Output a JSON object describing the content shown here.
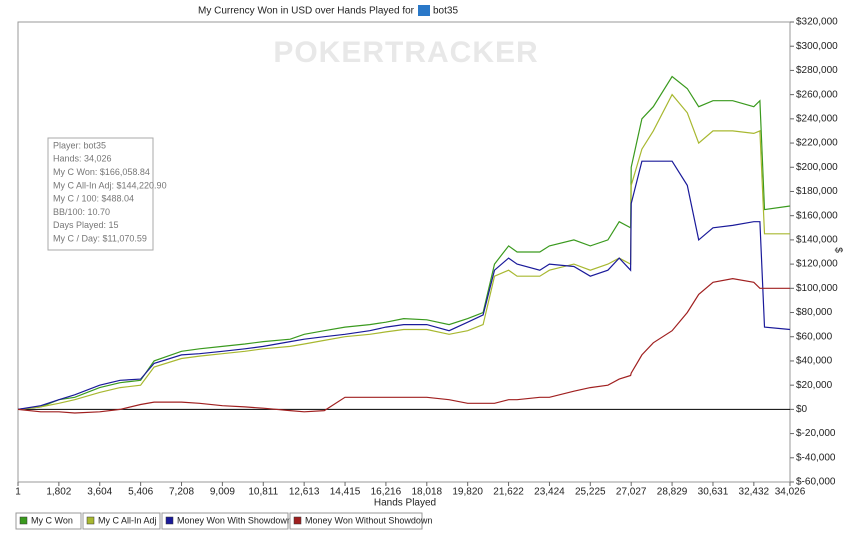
{
  "chart_data": {
    "type": "line",
    "title": "My Currency Won in USD over Hands Played for",
    "title_player": "bot35",
    "watermark": "POKERTRACKER",
    "x_label": "Hands Played",
    "y_label": "$",
    "info_box": [
      "Player: bot35",
      "Hands: 34,026",
      "My C Won: $166,058.84",
      "My C All-In Adj: $144,220.90",
      "My C / 100: $488.04",
      "BB/100: 10.70",
      "Days Played: 15",
      "My C / Day: $11,070.59"
    ],
    "grid": false,
    "xlim": [
      1,
      34026
    ],
    "ylim": [
      -60000,
      320000
    ],
    "xticks": [
      1,
      {
        "value": 1802,
        "label": "1,802"
      },
      {
        "value": 3604,
        "label": "3,604"
      },
      {
        "value": 5406,
        "label": "5,406"
      },
      {
        "value": 7208,
        "label": "7,208"
      },
      {
        "value": 9009,
        "label": "9,009"
      },
      {
        "value": 10811,
        "label": "10,811"
      },
      {
        "value": 12613,
        "label": "12,613"
      },
      {
        "value": 14415,
        "label": "14,415"
      },
      {
        "value": 16216,
        "label": "16,216"
      },
      {
        "value": 18018,
        "label": "18,018"
      },
      {
        "value": 19820,
        "label": "19,820"
      },
      {
        "value": 21622,
        "label": "21,622"
      },
      {
        "value": 23424,
        "label": "23,424"
      },
      {
        "value": 25225,
        "label": "25,225"
      },
      {
        "value": 27027,
        "label": "27,027"
      },
      {
        "value": 28829,
        "label": "28,829"
      },
      {
        "value": 30631,
        "label": "30,631"
      },
      {
        "value": 32432,
        "label": "32,432"
      },
      {
        "value": 34026,
        "label": "34,026"
      }
    ],
    "yticks": [
      {
        "value": -60000,
        "label": "$-60,000"
      },
      {
        "value": -40000,
        "label": "$-40,000"
      },
      {
        "value": -20000,
        "label": "$-20,000"
      },
      {
        "value": 0,
        "label": "$0"
      },
      {
        "value": 20000,
        "label": "$20,000"
      },
      {
        "value": 40000,
        "label": "$40,000"
      },
      {
        "value": 60000,
        "label": "$60,000"
      },
      {
        "value": 80000,
        "label": "$80,000"
      },
      {
        "value": 100000,
        "label": "$100,000"
      },
      {
        "value": 120000,
        "label": "$120,000"
      },
      {
        "value": 140000,
        "label": "$140,000"
      },
      {
        "value": 160000,
        "label": "$160,000"
      },
      {
        "value": 180000,
        "label": "$180,000"
      },
      {
        "value": 200000,
        "label": "$200,000"
      },
      {
        "value": 220000,
        "label": "$220,000"
      },
      {
        "value": 240000,
        "label": "$240,000"
      },
      {
        "value": 260000,
        "label": "$260,000"
      },
      {
        "value": 280000,
        "label": "$280,000"
      },
      {
        "value": 300000,
        "label": "$300,000"
      },
      {
        "value": 320000,
        "label": "$320,000"
      }
    ],
    "x": [
      1,
      1000,
      1802,
      2500,
      3604,
      4500,
      5406,
      6000,
      7208,
      8000,
      9009,
      10000,
      10811,
      12000,
      12613,
      13500,
      14415,
      15500,
      16216,
      17000,
      18018,
      19000,
      19820,
      20500,
      21000,
      21622,
      22000,
      23000,
      23424,
      24500,
      25225,
      26000,
      26500,
      27000,
      27027,
      27500,
      28000,
      28829,
      29500,
      30000,
      30631,
      31500,
      32432,
      32700,
      32900,
      34026
    ],
    "series": [
      {
        "name": "My C Won",
        "color": "#3a9a1e",
        "values": [
          0,
          2000,
          8000,
          10000,
          18000,
          22000,
          24000,
          40000,
          48000,
          50000,
          52000,
          54000,
          56000,
          58000,
          62000,
          65000,
          68000,
          70000,
          72000,
          75000,
          74000,
          70000,
          75000,
          80000,
          120000,
          135000,
          130000,
          130000,
          135000,
          140000,
          135000,
          140000,
          155000,
          150000,
          200000,
          240000,
          250000,
          275000,
          265000,
          250000,
          255000,
          255000,
          250000,
          255000,
          165000,
          168000
        ]
      },
      {
        "name": "My C All-In Adj",
        "color": "#a8b830",
        "values": [
          0,
          2000,
          5000,
          8000,
          14000,
          18000,
          20000,
          35000,
          42000,
          44000,
          46000,
          48000,
          50000,
          52000,
          54000,
          57000,
          60000,
          62000,
          64000,
          66000,
          66000,
          62000,
          65000,
          70000,
          110000,
          115000,
          110000,
          110000,
          115000,
          120000,
          115000,
          120000,
          125000,
          120000,
          185000,
          215000,
          230000,
          260000,
          245000,
          220000,
          230000,
          230000,
          228000,
          230000,
          145000,
          145000
        ]
      },
      {
        "name": "Money Won With Showdown",
        "color": "#1a1a9a",
        "values": [
          0,
          3000,
          8000,
          12000,
          20000,
          24000,
          25000,
          38000,
          45000,
          46000,
          48000,
          50000,
          52000,
          56000,
          58000,
          60000,
          62000,
          65000,
          68000,
          70000,
          70000,
          65000,
          72000,
          78000,
          115000,
          125000,
          120000,
          115000,
          120000,
          118000,
          110000,
          115000,
          125000,
          115000,
          170000,
          205000,
          205000,
          205000,
          185000,
          140000,
          150000,
          152000,
          155000,
          155000,
          68000,
          66000
        ]
      },
      {
        "name": "Money Won Without Showdown",
        "color": "#a02020",
        "values": [
          0,
          -2000,
          -2000,
          -3000,
          -2000,
          0,
          4000,
          6000,
          6000,
          5000,
          3000,
          2000,
          1000,
          -1000,
          -2000,
          -1000,
          10000,
          10000,
          10000,
          10000,
          10000,
          8000,
          5000,
          5000,
          5000,
          8000,
          8000,
          10000,
          10000,
          15000,
          18000,
          20000,
          25000,
          28000,
          30000,
          45000,
          55000,
          65000,
          80000,
          95000,
          105000,
          108000,
          105000,
          100000,
          100000,
          100000
        ]
      }
    ]
  }
}
